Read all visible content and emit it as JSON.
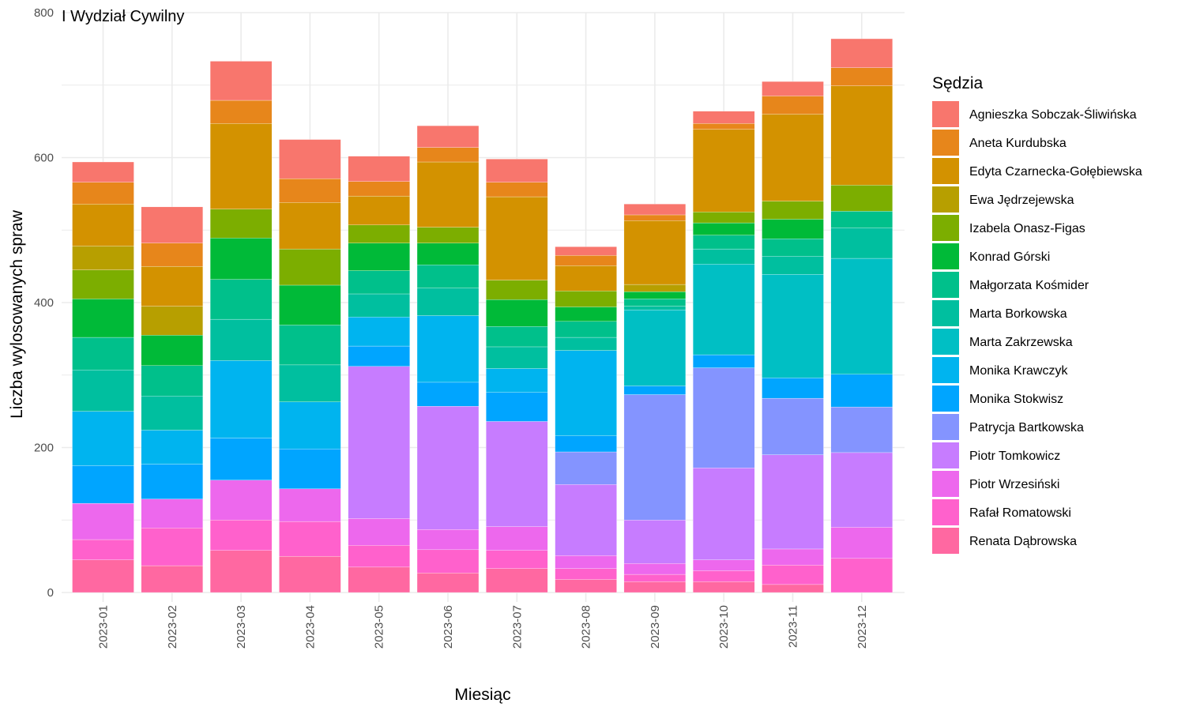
{
  "chart_data": {
    "type": "bar",
    "stacked": true,
    "title": "I Wydział Cywilny",
    "xlabel": "Miesiąc",
    "ylabel": "Liczba wylosowanych spraw",
    "ylim": [
      0,
      800
    ],
    "yticks": [
      "0",
      "200",
      "400",
      "600",
      "800"
    ],
    "grid": true,
    "legend_title": "Sędzia",
    "legend_position": "right",
    "categories": [
      "2023-01",
      "2023-02",
      "2023-03",
      "2023-04",
      "2023-05",
      "2023-06",
      "2023-07",
      "2023-08",
      "2023-09",
      "2023-10",
      "2023-11",
      "2023-12"
    ],
    "series": [
      {
        "name": "Agnieszka Sobczak-Śliwińska",
        "color": "#F8766D",
        "values": [
          28,
          50,
          54,
          54,
          35,
          30,
          32,
          12,
          15,
          17,
          20,
          40
        ]
      },
      {
        "name": "Aneta Kurdubska",
        "color": "#E7861B",
        "values": [
          30,
          32,
          32,
          33,
          20,
          20,
          20,
          14,
          8,
          8,
          25,
          25
        ]
      },
      {
        "name": "Edyta Czarnecka-Gołębiewska",
        "color": "#D39200",
        "values": [
          58,
          55,
          118,
          64,
          40,
          90,
          115,
          35,
          88,
          114,
          120,
          137
        ]
      },
      {
        "name": "Ewa Jędrzejewska",
        "color": "#B79F00",
        "values": [
          33,
          40,
          0,
          0,
          0,
          0,
          0,
          0,
          10,
          0,
          0,
          0
        ]
      },
      {
        "name": "Izabela Onasz-Figas",
        "color": "#7CAE00",
        "values": [
          40,
          0,
          40,
          50,
          25,
          22,
          27,
          22,
          0,
          15,
          25,
          36
        ]
      },
      {
        "name": "Konrad Górski",
        "color": "#00BA38",
        "values": [
          53,
          42,
          57,
          55,
          38,
          30,
          37,
          20,
          10,
          17,
          27,
          0
        ]
      },
      {
        "name": "Małgorzata Kośmider",
        "color": "#00C08B",
        "values": [
          45,
          42,
          55,
          55,
          32,
          32,
          28,
          22,
          10,
          19,
          24,
          23
        ]
      },
      {
        "name": "Marta Borkowska",
        "color": "#00BF9F",
        "values": [
          57,
          47,
          57,
          51,
          32,
          38,
          30,
          18,
          5,
          21,
          25,
          42
        ]
      },
      {
        "name": "Marta Zakrzewska",
        "color": "#00BFC4",
        "values": [
          0,
          0,
          0,
          0,
          0,
          0,
          0,
          0,
          105,
          125,
          143,
          160
        ]
      },
      {
        "name": "Monika Krawczyk",
        "color": "#00B4EF",
        "values": [
          75,
          47,
          107,
          65,
          40,
          92,
          33,
          118,
          0,
          0,
          0,
          0
        ]
      },
      {
        "name": "Monika Stokwisz",
        "color": "#00A5FF",
        "values": [
          52,
          48,
          58,
          55,
          28,
          33,
          40,
          22,
          12,
          18,
          28,
          45
        ]
      },
      {
        "name": "Patrycja Bartkowska",
        "color": "#8494FF",
        "values": [
          0,
          0,
          0,
          0,
          0,
          0,
          0,
          45,
          173,
          138,
          78,
          63
        ]
      },
      {
        "name": "Piotr Tomkowicz",
        "color": "#C77CFF",
        "values": [
          0,
          0,
          0,
          0,
          210,
          170,
          145,
          98,
          60,
          127,
          130,
          103
        ]
      },
      {
        "name": "Piotr Wrzesiński",
        "color": "#ED68ED",
        "values": [
          50,
          40,
          55,
          45,
          37,
          28,
          33,
          18,
          15,
          15,
          22,
          43
        ]
      },
      {
        "name": "Rafał Romatowski",
        "color": "#FF61CC",
        "values": [
          28,
          52,
          42,
          48,
          30,
          32,
          25,
          15,
          10,
          15,
          27,
          47
        ]
      },
      {
        "name": "Renata Dąbrowska",
        "color": "#FF68A1",
        "values": [
          45,
          37,
          58,
          50,
          35,
          27,
          33,
          18,
          15,
          15,
          11,
          0
        ]
      }
    ]
  }
}
